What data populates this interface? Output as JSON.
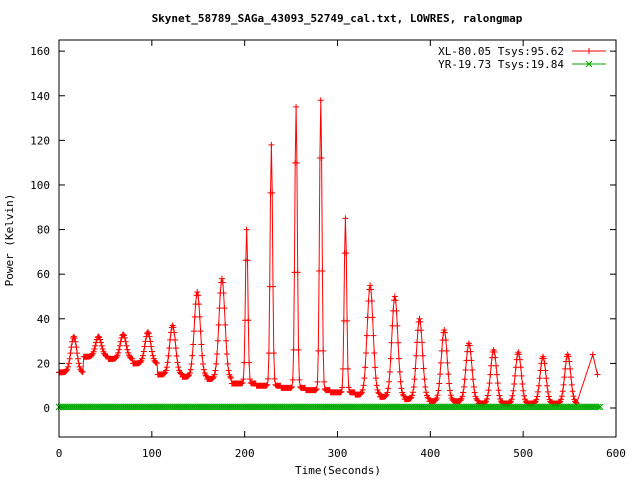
{
  "chart_data": {
    "type": "line",
    "title": "Skynet_58789_SAGa_43093_52749_cal.txt, LOWRES, ralongmap",
    "xlabel": "Time(Seconds)",
    "ylabel": "Power (Kelvin)",
    "xlim": [
      0,
      600
    ],
    "ylim": [
      -13,
      165
    ],
    "x_ticks": [
      0,
      100,
      200,
      300,
      400,
      500,
      600
    ],
    "y_ticks": [
      0,
      20,
      40,
      60,
      80,
      100,
      120,
      140,
      160
    ],
    "grid": false,
    "legend_position": "top-right",
    "series": [
      {
        "name": "XL-80.05 Tsys:95.62",
        "color": "#ff0000",
        "marker": "plus",
        "sweep_start": 0,
        "sweep_period": 26.6,
        "sweep_count": 21,
        "minima": [
          16,
          23,
          22,
          20,
          15,
          14,
          13,
          11,
          10,
          9,
          8,
          7,
          6,
          5,
          4,
          3,
          3,
          2,
          2,
          2,
          2
        ],
        "peaks": [
          32,
          32,
          33,
          34,
          37,
          52,
          58,
          80,
          118,
          135,
          138,
          85,
          55,
          50,
          40,
          35,
          29,
          26,
          25,
          23,
          24
        ],
        "end_points": [
          [
            575,
            24
          ],
          [
            580,
            15
          ]
        ]
      },
      {
        "name": "YR-19.73 Tsys:19.84",
        "color": "#00aa00",
        "marker": "cross",
        "x_range": [
          0,
          583
        ],
        "level": 0.5
      }
    ]
  }
}
